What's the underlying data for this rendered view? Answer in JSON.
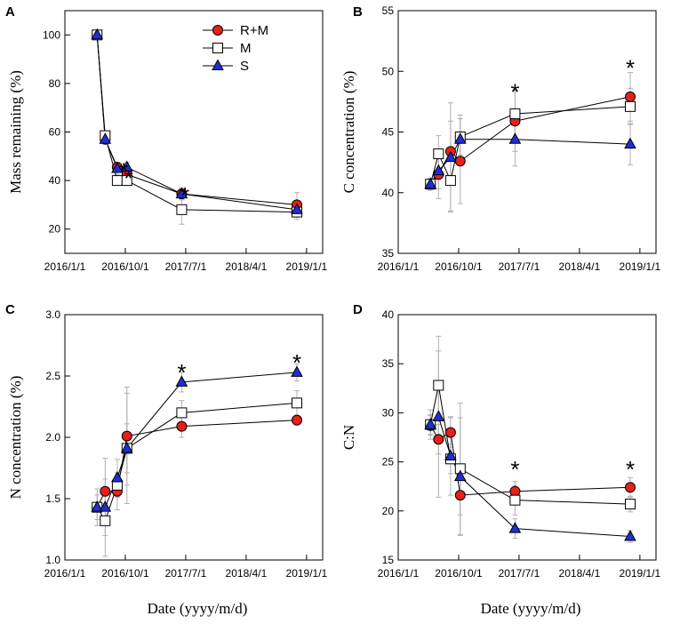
{
  "chart_data": [
    {
      "panel": "A",
      "type": "line",
      "ylabel": "Mass remaining (%)",
      "xlabel": "",
      "ylim": [
        10,
        110
      ],
      "yticks": [
        20,
        40,
        60,
        80,
        100
      ],
      "xticks": [
        "2016/1/1",
        "2016/10/1",
        "2017/7/1",
        "2018/4/1",
        "2019/1/1"
      ],
      "significance": [
        {
          "x": 2016.73,
          "y": 45,
          "label": "*"
        },
        {
          "x": 2016.79,
          "y": 42,
          "label": "*"
        },
        {
          "x": 2017.49,
          "y": 35,
          "label": "*"
        }
      ],
      "series": [
        {
          "name": "R+M",
          "x": [
            2016.4,
            2016.5,
            2016.65,
            2016.77,
            2017.45,
            2018.88
          ],
          "y": [
            100,
            57,
            45.5,
            42.5,
            34.5,
            30
          ],
          "err": [
            0,
            2,
            1.5,
            2,
            2.5,
            5
          ]
        },
        {
          "name": "M",
          "x": [
            2016.4,
            2016.5,
            2016.65,
            2016.77,
            2017.45,
            2018.88
          ],
          "y": [
            100,
            58.5,
            40,
            40,
            28,
            27
          ],
          "err": [
            0,
            2,
            2,
            2,
            6,
            3
          ]
        },
        {
          "name": "S",
          "x": [
            2016.4,
            2016.5,
            2016.65,
            2016.77,
            2017.45,
            2018.88
          ],
          "y": [
            100,
            57,
            45,
            45.5,
            34.5,
            28
          ],
          "err": [
            0,
            2,
            2.5,
            2,
            2,
            3
          ]
        }
      ]
    },
    {
      "panel": "B",
      "type": "line",
      "ylabel": "C concentration (%)",
      "xlabel": "",
      "ylim": [
        35,
        55
      ],
      "yticks": [
        35,
        40,
        45,
        50,
        55
      ],
      "xticks": [
        "2016/1/1",
        "2016/10/1",
        "2017/7/1",
        "2018/4/1",
        "2019/1/1"
      ],
      "significance": [
        {
          "x": 2017.45,
          "y": 48.5,
          "label": "*"
        },
        {
          "x": 2018.88,
          "y": 50.5,
          "label": "*"
        }
      ],
      "series": [
        {
          "name": "R+M",
          "x": [
            2016.4,
            2016.5,
            2016.65,
            2016.77,
            2017.45,
            2018.88
          ],
          "y": [
            40.7,
            41.5,
            43.4,
            42.6,
            45.9,
            47.9
          ],
          "err": [
            0.5,
            2,
            2.5,
            3.5,
            2.5,
            2
          ]
        },
        {
          "name": "M",
          "x": [
            2016.4,
            2016.5,
            2016.65,
            2016.77,
            2017.45,
            2018.88
          ],
          "y": [
            40.7,
            43.2,
            41.0,
            44.6,
            46.5,
            47.1
          ],
          "err": [
            0.5,
            1.5,
            2.5,
            1.5,
            2.0,
            1.5
          ]
        },
        {
          "name": "S",
          "x": [
            2016.4,
            2016.5,
            2016.65,
            2016.77,
            2017.45,
            2018.88
          ],
          "y": [
            40.7,
            41.8,
            42.9,
            44.4,
            44.4,
            44.0
          ],
          "err": [
            0.5,
            1.5,
            4.5,
            2.0,
            2.2,
            1.7
          ]
        }
      ]
    },
    {
      "panel": "C",
      "type": "line",
      "ylabel": "N concentration (%)",
      "xlabel": "Date (yyyy/m/d)",
      "ylim": [
        1.0,
        3.0
      ],
      "yticks": [
        1.0,
        1.5,
        2.0,
        2.5,
        3.0
      ],
      "xticks": [
        "2016/1/1",
        "2016/10/1",
        "2017/7/1",
        "2018/4/1",
        "2019/1/1"
      ],
      "significance": [
        {
          "x": 2017.45,
          "y": 2.55,
          "label": "*"
        },
        {
          "x": 2018.88,
          "y": 2.63,
          "label": "*"
        }
      ],
      "series": [
        {
          "name": "R+M",
          "x": [
            2016.4,
            2016.5,
            2016.65,
            2016.77,
            2017.45,
            2018.88
          ],
          "y": [
            1.43,
            1.56,
            1.56,
            2.01,
            2.09,
            2.14
          ],
          "err": [
            0.04,
            0.1,
            0.15,
            0.4,
            0.09,
            0.04
          ]
        },
        {
          "name": "M",
          "x": [
            2016.4,
            2016.5,
            2016.65,
            2016.77,
            2017.45,
            2018.88
          ],
          "y": [
            1.43,
            1.32,
            1.61,
            1.91,
            2.2,
            2.28
          ],
          "err": [
            0.1,
            0.12,
            0.1,
            0.45,
            0.1,
            0.1
          ]
        },
        {
          "name": "S",
          "x": [
            2016.4,
            2016.5,
            2016.65,
            2016.77,
            2017.45,
            2018.88
          ],
          "y": [
            1.43,
            1.43,
            1.67,
            1.91,
            2.45,
            2.53
          ],
          "err": [
            0.15,
            0.4,
            0.15,
            0.2,
            0.08,
            0.07
          ]
        }
      ]
    },
    {
      "panel": "D",
      "type": "line",
      "ylabel": "C:N",
      "xlabel": "Date (yyyy/m/d)",
      "ylim": [
        15,
        40
      ],
      "yticks": [
        15,
        20,
        25,
        30,
        35,
        40
      ],
      "xticks": [
        "2016/1/1",
        "2016/10/1",
        "2017/7/1",
        "2018/4/1",
        "2019/1/1"
      ],
      "significance": [
        {
          "x": 2017.45,
          "y": 24.5,
          "label": "*"
        },
        {
          "x": 2018.88,
          "y": 24.5,
          "label": "*"
        }
      ],
      "series": [
        {
          "name": "R+M",
          "x": [
            2016.4,
            2016.5,
            2016.65,
            2016.77,
            2017.45,
            2018.88
          ],
          "y": [
            28.7,
            27.3,
            28.0,
            21.6,
            22.0,
            22.4
          ],
          "err": [
            1,
            1.5,
            1.5,
            2,
            1,
            1
          ]
        },
        {
          "name": "M",
          "x": [
            2016.4,
            2016.5,
            2016.65,
            2016.77,
            2017.45,
            2018.88
          ],
          "y": [
            28.8,
            32.8,
            25.3,
            24.3,
            21.1,
            20.7
          ],
          "err": [
            1.5,
            3.5,
            1.5,
            6.7,
            1.5,
            0.8
          ]
        },
        {
          "name": "S",
          "x": [
            2016.4,
            2016.5,
            2016.65,
            2016.77,
            2017.45,
            2018.88
          ],
          "y": [
            28.8,
            29.6,
            25.6,
            23.5,
            18.2,
            17.4
          ],
          "err": [
            1,
            8.2,
            4,
            6,
            1,
            0.6
          ]
        }
      ]
    }
  ],
  "legend": {
    "entries": [
      "R+M",
      "M",
      "S"
    ],
    "placement": "top-right of panel A"
  },
  "colors": {
    "R+M": "#e8201a",
    "M": "#ffffff",
    "S": "#1f2ed6",
    "errorbar": "#b0b0b0",
    "line": "#000000"
  }
}
